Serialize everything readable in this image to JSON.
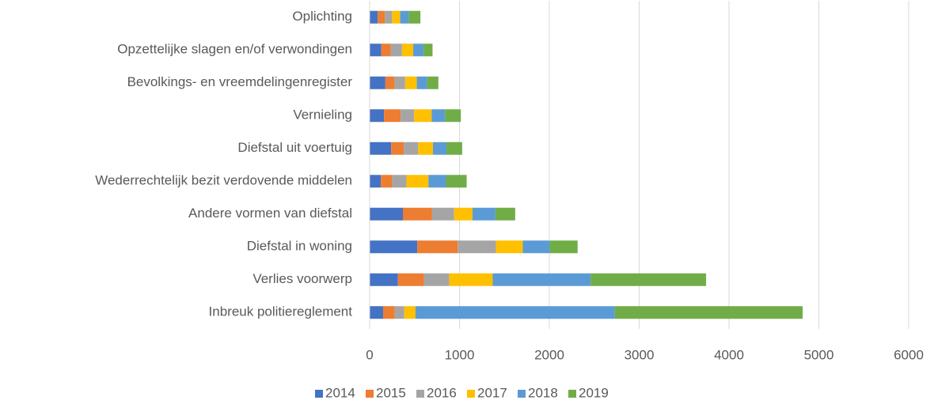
{
  "chart_data": {
    "type": "stacked-bar-horizontal",
    "categories": [
      "Oplichting",
      "Opzettelijke slagen en/of verwondingen",
      "Bevolkings- en vreemdelingenregister",
      "Vernieling",
      "Diefstal uit voertuig",
      "Wederrechtelijk bezit verdovende middelen",
      "Andere vormen van diefstal",
      "Diefstal in woning",
      "Verlies voorwerp",
      "Inbreuk politiereglement"
    ],
    "series": [
      {
        "name": "2014",
        "color": "#4472c4",
        "values": [
          90,
          130,
          175,
          160,
          240,
          125,
          370,
          530,
          315,
          150
        ]
      },
      {
        "name": "2015",
        "color": "#ed7d31",
        "values": [
          80,
          105,
          105,
          185,
          140,
          125,
          325,
          450,
          290,
          130
        ]
      },
      {
        "name": "2016",
        "color": "#a5a5a5",
        "values": [
          80,
          125,
          115,
          150,
          160,
          160,
          245,
          425,
          280,
          105
        ]
      },
      {
        "name": "2017",
        "color": "#ffc000",
        "values": [
          90,
          125,
          130,
          195,
          165,
          245,
          205,
          300,
          485,
          125
        ]
      },
      {
        "name": "2018",
        "color": "#5b9bd5",
        "values": [
          95,
          115,
          115,
          150,
          150,
          195,
          255,
          300,
          1090,
          2220
        ]
      },
      {
        "name": "2019",
        "color": "#70ad47",
        "values": [
          130,
          100,
          125,
          175,
          175,
          230,
          220,
          310,
          1285,
          2090
        ]
      }
    ],
    "xlim": [
      0,
      6000
    ],
    "xticks": [
      0,
      1000,
      2000,
      3000,
      4000,
      5000,
      6000
    ],
    "grid": true,
    "legend": "bottom"
  }
}
